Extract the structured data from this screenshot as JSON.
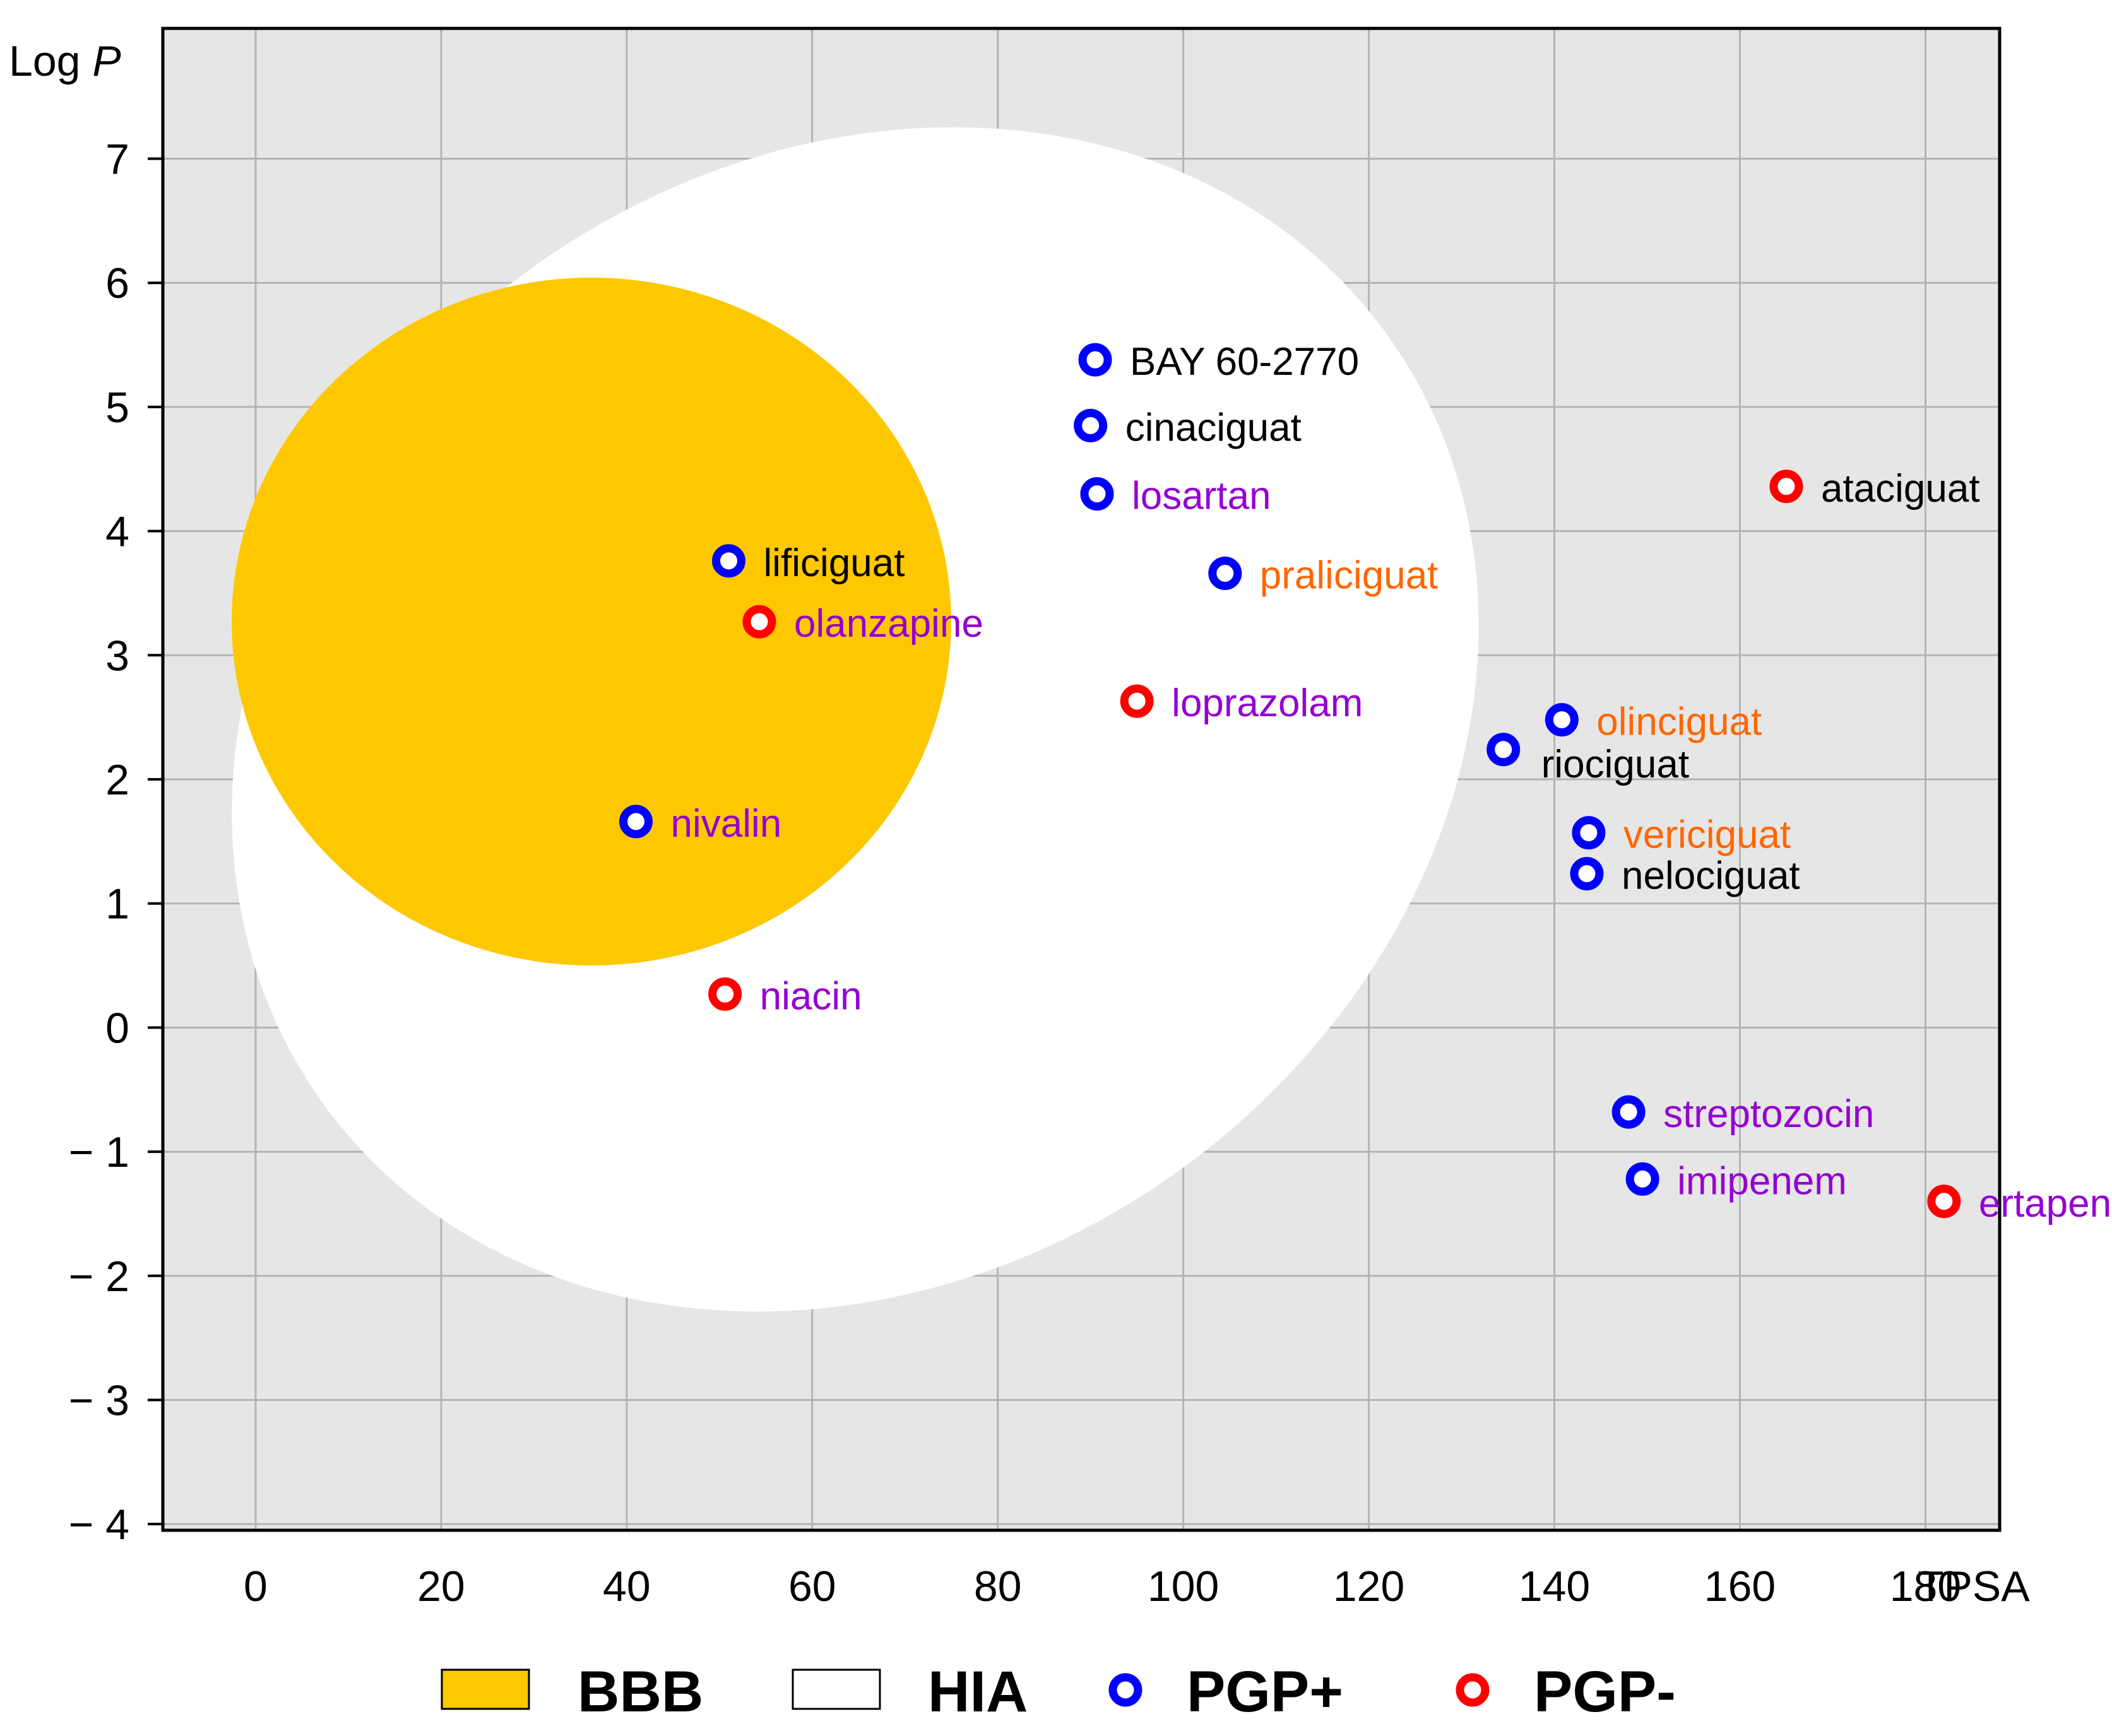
{
  "chart_data": {
    "type": "scatter",
    "title": "",
    "xlabel": "TPSA",
    "ylabel_main": "Log ",
    "ylabel_italic": "P",
    "xlim": [
      -10,
      188
    ],
    "ylim": [
      -4.05,
      8.05
    ],
    "xticks": [
      0,
      20,
      40,
      60,
      80,
      100,
      120,
      140,
      160,
      180
    ],
    "yticks": [
      7,
      6,
      5,
      4,
      3,
      2,
      1,
      0,
      -1,
      -2,
      -3,
      -4
    ],
    "ytick_labels": [
      "7",
      "6",
      "5",
      "4",
      "3",
      "2",
      "1",
      "0",
      "− 1",
      "− 2",
      "− 3",
      "− 4"
    ],
    "grid": true,
    "regions": [
      {
        "name": "HIA",
        "shape": "ellipse",
        "fill": "#ffffff"
      },
      {
        "name": "BBB",
        "shape": "ellipse",
        "fill": "#fec800"
      }
    ],
    "colors": {
      "background": "#e6e6e6",
      "grid": "#b4b4b4",
      "bbb": "#fec800",
      "hia": "#ffffff",
      "pgp_plus": "#0000ff",
      "pgp_minus": "#ff0000",
      "label_black": "#000000",
      "label_purple": "#9400d3",
      "label_orange": "#ff6600"
    },
    "points": [
      {
        "name": "BAY 60-2770",
        "x": 90.5,
        "y": 5.38,
        "pgp": "PGP+",
        "label_color": "#000000"
      },
      {
        "name": "cinaciguat",
        "x": 90.0,
        "y": 4.85,
        "pgp": "PGP+",
        "label_color": "#000000"
      },
      {
        "name": "losartan",
        "x": 90.7,
        "y": 4.3,
        "pgp": "PGP+",
        "label_color": "#9400d3"
      },
      {
        "name": "ataciguat",
        "x": 165.0,
        "y": 4.36,
        "pgp": "PGP-",
        "label_color": "#000000"
      },
      {
        "name": "lificiguat",
        "x": 51.0,
        "y": 3.76,
        "pgp": "PGP+",
        "label_color": "#000000"
      },
      {
        "name": "praliciguat",
        "x": 104.5,
        "y": 3.66,
        "pgp": "PGP+",
        "label_color": "#ff6600"
      },
      {
        "name": "olanzapine",
        "x": 54.3,
        "y": 3.27,
        "pgp": "PGP-",
        "label_color": "#9400d3"
      },
      {
        "name": "loprazolam",
        "x": 95.0,
        "y": 2.63,
        "pgp": "PGP-",
        "label_color": "#9400d3"
      },
      {
        "name": "olinciguat",
        "x": 140.8,
        "y": 2.48,
        "pgp": "PGP+",
        "label_color": "#ff6600"
      },
      {
        "name": "riociguat",
        "x": 134.5,
        "y": 2.24,
        "pgp": "PGP+",
        "label_color": "#000000"
      },
      {
        "name": "nivalin",
        "x": 41.0,
        "y": 1.66,
        "pgp": "PGP+",
        "label_color": "#9400d3"
      },
      {
        "name": "vericiguat",
        "x": 143.7,
        "y": 1.57,
        "pgp": "PGP+",
        "label_color": "#ff6600"
      },
      {
        "name": "nelociguat",
        "x": 143.5,
        "y": 1.24,
        "pgp": "PGP+",
        "label_color": "#000000"
      },
      {
        "name": "niacin",
        "x": 50.6,
        "y": 0.27,
        "pgp": "PGP-",
        "label_color": "#9400d3"
      },
      {
        "name": "streptozocin",
        "x": 148.0,
        "y": -0.68,
        "pgp": "PGP+",
        "label_color": "#9400d3"
      },
      {
        "name": "imipenem",
        "x": 149.5,
        "y": -1.22,
        "pgp": "PGP+",
        "label_color": "#9400d3"
      },
      {
        "name": "ertapenem",
        "x": 182.0,
        "y": -1.4,
        "pgp": "PGP-",
        "label_color": "#9400d3"
      }
    ],
    "legend": [
      {
        "label": "BBB",
        "kind": "swatch",
        "fill": "#fec800"
      },
      {
        "label": "HIA",
        "kind": "swatch",
        "fill": "#ffffff"
      },
      {
        "label": "PGP+",
        "kind": "marker",
        "color": "#0000ff"
      },
      {
        "label": "PGP-",
        "kind": "marker",
        "color": "#ff0000"
      }
    ],
    "legend_position": "bottom"
  }
}
